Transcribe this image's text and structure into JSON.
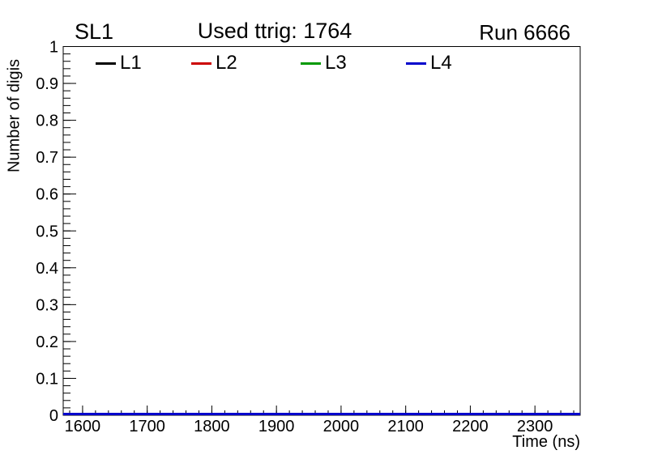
{
  "header": {
    "left_title": "SL1",
    "center_title": "Used ttrig: 1764",
    "right_title": "Run 6666"
  },
  "legend": {
    "entries": [
      {
        "label": "L1",
        "color": "#000000"
      },
      {
        "label": "L2",
        "color": "#cc0000"
      },
      {
        "label": "L3",
        "color": "#009900"
      },
      {
        "label": "L4",
        "color": "#0000cc"
      }
    ]
  },
  "chart_data": {
    "type": "line",
    "title": "Used ttrig: 1764",
    "annotations": [
      "SL1",
      "Run 6666"
    ],
    "xlabel": "Time (ns)",
    "ylabel": "Number of digis",
    "xlim": [
      1570,
      2370
    ],
    "ylim": [
      0,
      1
    ],
    "x": [
      1570,
      2370
    ],
    "x_major_ticks": [
      1600,
      1700,
      1800,
      1900,
      2000,
      2100,
      2200,
      2300
    ],
    "x_major_tick_labels": [
      "1600",
      "1700",
      "1800",
      "1900",
      "2000",
      "2100",
      "2200",
      "2300"
    ],
    "x_minor_step": 20,
    "y_major_ticks": [
      0,
      0.1,
      0.2,
      0.3,
      0.4,
      0.5,
      0.6,
      0.7,
      0.8,
      0.9,
      1
    ],
    "y_major_tick_labels": [
      "0",
      "0.1",
      "0.2",
      "0.3",
      "0.4",
      "0.5",
      "0.6",
      "0.7",
      "0.8",
      "0.9",
      "1"
    ],
    "y_minor_step": 0.02,
    "grid": false,
    "legend_position": "top-inside-horizontal",
    "frame_color": "#000000",
    "background_color": "#ffffff",
    "series": [
      {
        "name": "L1",
        "color": "#000000",
        "values": [
          0,
          0
        ]
      },
      {
        "name": "L2",
        "color": "#cc0000",
        "values": [
          0,
          0
        ]
      },
      {
        "name": "L3",
        "color": "#009900",
        "values": [
          0,
          0
        ]
      },
      {
        "name": "L4",
        "color": "#0000cc",
        "values": [
          0,
          0
        ]
      }
    ]
  }
}
